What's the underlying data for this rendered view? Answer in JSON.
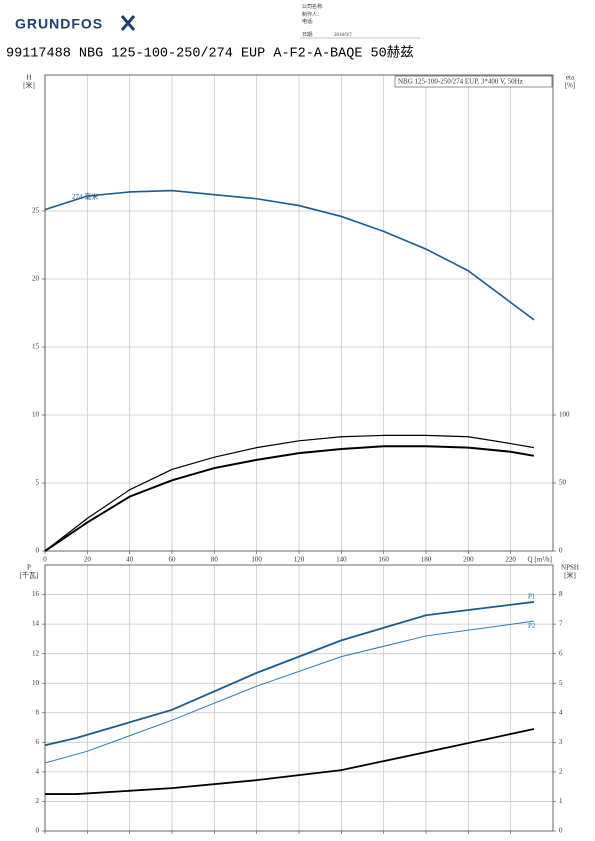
{
  "header": {
    "logo": "GRUNDFOS",
    "fields": [
      "公司名称:",
      "制作人：",
      "电话:",
      "日期:"
    ],
    "date": "2018/9/7",
    "title": "99117488 NBG 125-100-250/274 EUP A-F2-A-BAQE 50赫兹"
  },
  "chart_data": [
    {
      "type": "line",
      "info": "NBG 125-100-250/274 EUP, 3*400 V, 50Hz",
      "y_label": "H",
      "y_unit": "[米]",
      "y2_label": "eta",
      "y2_unit": "[%]",
      "x_label": "Q [m³/h]",
      "xlim": [
        0,
        240
      ],
      "xticks": [
        0,
        20,
        40,
        60,
        80,
        100,
        120,
        140,
        160,
        180,
        200,
        220
      ],
      "ylim": [
        0,
        35
      ],
      "yticks": [
        0,
        5,
        10,
        15,
        20,
        25
      ],
      "y2lim": [
        0,
        350
      ],
      "y2ticks": [
        0,
        50,
        100
      ],
      "grid": true,
      "series": [
        {
          "name": "274 毫米",
          "color": "#1a5b8e",
          "x": [
            0,
            20,
            40,
            60,
            80,
            100,
            120,
            140,
            160,
            180,
            200,
            231
          ],
          "values": [
            25.1,
            26.1,
            26.4,
            26.5,
            26.2,
            25.9,
            25.4,
            24.6,
            23.5,
            22.2,
            20.6,
            17.0
          ]
        },
        {
          "color": "#000000",
          "axis": "y2",
          "x": [
            0,
            20,
            40,
            60,
            80,
            100,
            120,
            140,
            160,
            180,
            200,
            220,
            231
          ],
          "values": [
            0,
            24,
            45,
            60,
            69,
            76,
            81,
            84,
            85,
            85,
            84,
            79,
            76
          ]
        },
        {
          "color": "#000000",
          "axis": "y2",
          "x": [
            0,
            20,
            40,
            60,
            80,
            100,
            120,
            140,
            160,
            180,
            200,
            220,
            231
          ],
          "values": [
            0,
            21,
            40,
            52,
            61,
            67,
            72,
            75,
            77,
            77,
            76,
            73,
            70
          ]
        }
      ]
    },
    {
      "type": "line",
      "y_label": "P",
      "y_unit": "[千瓦]",
      "y2_label": "NPSH",
      "y2_unit": "[米]",
      "xlim": [
        0,
        240
      ],
      "ylim": [
        0,
        18
      ],
      "yticks": [
        0,
        2,
        4,
        6,
        8,
        10,
        12,
        14,
        16
      ],
      "y2lim": [
        0,
        9
      ],
      "y2ticks": [
        0,
        1,
        2,
        3,
        4,
        5,
        6,
        7,
        8
      ],
      "grid": true,
      "series": [
        {
          "name": "P1",
          "color": "#1a5b8e",
          "x": [
            0,
            15,
            60,
            100,
            140,
            180,
            231
          ],
          "values": [
            5.8,
            6.3,
            8.2,
            10.7,
            12.9,
            14.6,
            15.5
          ]
        },
        {
          "name": "P2",
          "color": "#2e78b5",
          "x": [
            0,
            20,
            60,
            100,
            140,
            180,
            231
          ],
          "values": [
            4.6,
            5.4,
            7.5,
            9.8,
            11.8,
            13.2,
            14.2
          ]
        },
        {
          "color": "#000000",
          "axis": "y2",
          "x": [
            0,
            15,
            60,
            100,
            140,
            180,
            231
          ],
          "values": [
            1.25,
            1.25,
            1.45,
            1.72,
            2.06,
            2.67,
            3.45
          ]
        }
      ]
    }
  ]
}
